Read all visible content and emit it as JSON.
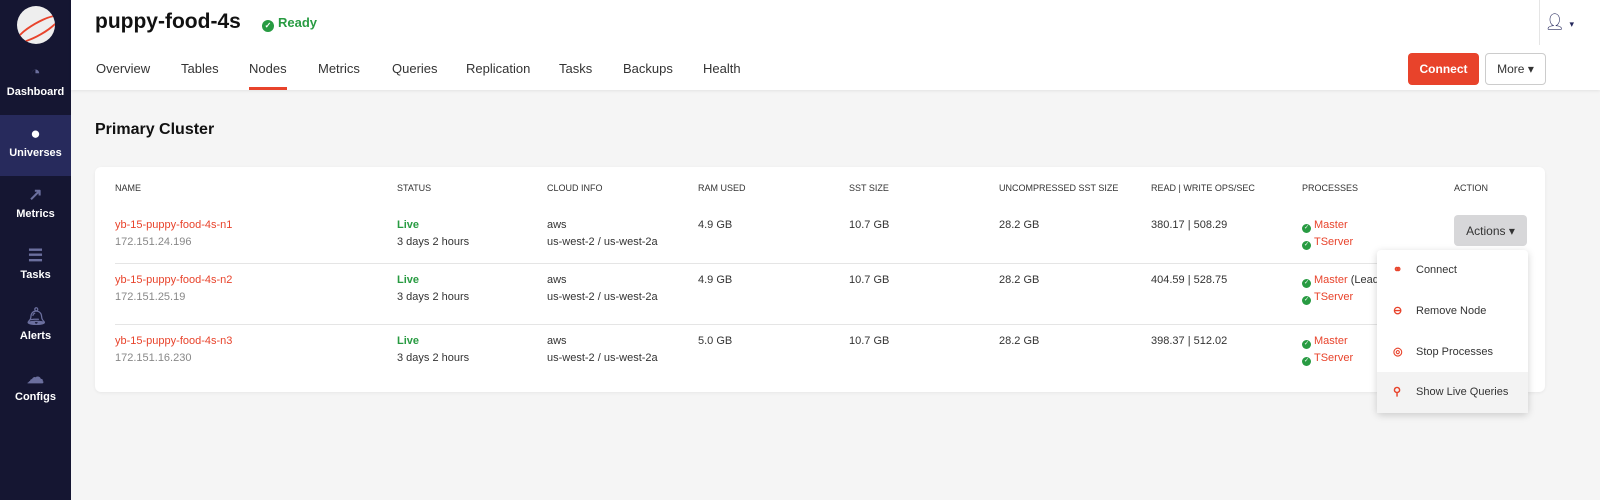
{
  "sidebar": {
    "items": [
      {
        "label": "Dashboard",
        "icon": "dashboard-icon"
      },
      {
        "label": "Universes",
        "icon": "globe-icon",
        "active": true
      },
      {
        "label": "Metrics",
        "icon": "chart-icon"
      },
      {
        "label": "Tasks",
        "icon": "list-icon"
      },
      {
        "label": "Alerts",
        "icon": "bell-icon"
      },
      {
        "label": "Configs",
        "icon": "cloud-upload-icon"
      }
    ]
  },
  "header": {
    "title": "puppy-food-4s",
    "status": "Ready",
    "connect_label": "Connect",
    "more_label": "More ▾",
    "tabs": [
      "Overview",
      "Tables",
      "Nodes",
      "Metrics",
      "Queries",
      "Replication",
      "Tasks",
      "Backups",
      "Health"
    ],
    "active_tab": "Nodes"
  },
  "section_title": "Primary Cluster",
  "table": {
    "columns": [
      "Name",
      "Status",
      "Cloud Info",
      "RAM Used",
      "SST Size",
      "Uncompressed SST Size",
      "Read | Write Ops/Sec",
      "Processes",
      "Action"
    ],
    "rows": [
      {
        "name": "yb-15-puppy-food-4s-n1",
        "ip": "172.151.24.196",
        "status": "Live",
        "uptime": "3 days 2 hours",
        "cloud": "aws",
        "region": "us-west-2 / us-west-2a",
        "ram": "4.9 GB",
        "sst": "10.7 GB",
        "usst": "28.2 GB",
        "ops": "380.17 | 508.29",
        "master": "Master",
        "master_note": "",
        "tserver": "TServer"
      },
      {
        "name": "yb-15-puppy-food-4s-n2",
        "ip": "172.151.25.19",
        "status": "Live",
        "uptime": "3 days 2 hours",
        "cloud": "aws",
        "region": "us-west-2 / us-west-2a",
        "ram": "4.9 GB",
        "sst": "10.7 GB",
        "usst": "28.2 GB",
        "ops": "404.59 | 528.75",
        "master": "Master",
        "master_note": "(Lead",
        "tserver": "TServer"
      },
      {
        "name": "yb-15-puppy-food-4s-n3",
        "ip": "172.151.16.230",
        "status": "Live",
        "uptime": "3 days 2 hours",
        "cloud": "aws",
        "region": "us-west-2 / us-west-2a",
        "ram": "5.0 GB",
        "sst": "10.7 GB",
        "usst": "28.2 GB",
        "ops": "398.37 | 512.02",
        "master": "Master",
        "master_note": "",
        "tserver": "TServer"
      }
    ],
    "actions_label": "Actions ▾"
  },
  "menu": [
    {
      "label": "Connect",
      "icon": "link-icon"
    },
    {
      "label": "Remove Node",
      "icon": "minus-circle-icon"
    },
    {
      "label": "Stop Processes",
      "icon": "stop-circle-icon"
    },
    {
      "label": "Show Live Queries",
      "icon": "search-icon"
    }
  ],
  "colors": {
    "accent": "#e8432b",
    "sidebar": "#151632",
    "success": "#289b42"
  }
}
